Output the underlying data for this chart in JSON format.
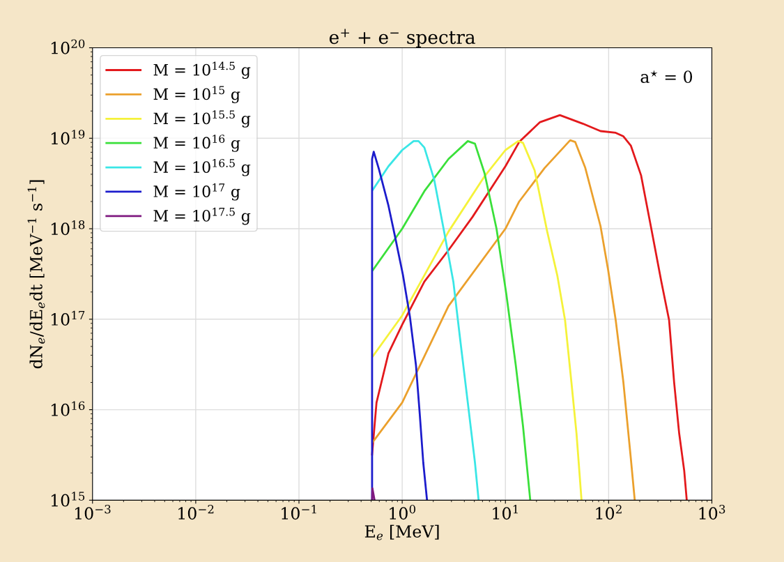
{
  "chart_data": {
    "type": "line",
    "title": "e$^{+}$ + e$^{−}$ spectra",
    "xlabel": "E$_{e}$ [MeV]",
    "ylabel": "dN$_{e}$/dE$_{e}$dt [MeV$^{−1}$ s$^{−1}$]",
    "annotations": [
      "a$^{⋆}$ = 0"
    ],
    "log": "xy",
    "grid": true,
    "legend": "top left",
    "line_style": "solid",
    "marker": "none",
    "xlim": [
      0.001,
      1000
    ],
    "ylim": [
      1000000000000000.0,
      1e+20
    ],
    "xticks": [
      {
        "value": 0.001,
        "label": "10$^{−3}$"
      },
      {
        "value": 0.01,
        "label": "10$^{−2}$"
      },
      {
        "value": 0.1,
        "label": "10$^{−1}$"
      },
      {
        "value": 1,
        "label": "10$^{0}$"
      },
      {
        "value": 10,
        "label": "10$^{1}$"
      },
      {
        "value": 100,
        "label": "10$^{2}$"
      },
      {
        "value": 1000,
        "label": "10$^{3}$"
      }
    ],
    "yticks": [
      {
        "value": 1000000000000000.0,
        "label": "10$^{15}$"
      },
      {
        "value": 1e+16,
        "label": "10$^{16}$"
      },
      {
        "value": 1e+17,
        "label": "10$^{17}$"
      },
      {
        "value": 1e+18,
        "label": "10$^{18}$"
      },
      {
        "value": 1e+19,
        "label": "10$^{19}$"
      },
      {
        "value": 1e+20,
        "label": "10$^{20}$"
      }
    ],
    "series": [
      {
        "name": "M = 10$^{14.5}$ g",
        "color": "#e3191c",
        "x": [
          0.511,
          0.564,
          0.736,
          1.0,
          1.64,
          2.81,
          4.8,
          10.0,
          13.6,
          21.5,
          33.7,
          56.1,
          83.4,
          117,
          139,
          164,
          206,
          259,
          324,
          385,
          431,
          482,
          540,
          571
        ],
        "values": [
          3200000000000000.0,
          1.2e+16,
          4.2e+16,
          8.7e+16,
          2.6e+17,
          5.8e+17,
          1.35e+18,
          4.9e+18,
          9.1e+18,
          1.5e+19,
          1.8e+19,
          1.45e+19,
          1.2e+19,
          1.15e+19,
          1.05e+19,
          8.3e+18,
          3.9e+18,
          1e+18,
          2.6e+17,
          9.8e+16,
          2e+16,
          5500000000000000.0,
          2100000000000000.0,
          1000000000000000.0
        ]
      },
      {
        "name": "M = 10$^{15}$ g",
        "color": "#eba02c",
        "x": [
          0.52,
          1.0,
          2.81,
          10.0,
          13.6,
          24.0,
          42.4,
          47.4,
          59.4,
          83.4,
          98.9,
          117,
          139,
          164,
          179
        ],
        "values": [
          4400000000000000.0,
          1.2e+16,
          1.4e+17,
          1e+18,
          2e+18,
          4.7e+18,
          9.5e+18,
          9.1e+18,
          4.7e+18,
          1.07e+18,
          3.5e+17,
          9.8e+16,
          2e+16,
          2900000000000000.0,
          1000000000000000.0
        ]
      },
      {
        "name": "M = 10$^{15.5}$ g",
        "color": "#f5f23a",
        "x": [
          0.52,
          1.0,
          2.81,
          6.28,
          10.0,
          13.3,
          14.8,
          19.2,
          25.4,
          31.9,
          37.8,
          43.6,
          48.8,
          54.6
        ],
        "values": [
          3.9e+16,
          1.1e+17,
          9.3e+17,
          3.8e+18,
          7.4e+18,
          9.3e+18,
          8.9e+18,
          4.4e+18,
          9.3e+17,
          3e+17,
          9.8e+16,
          2e+16,
          5500000000000000.0,
          1000000000000000.0
        ]
      },
      {
        "name": "M = 10$^{16}$ g",
        "color": "#3ae03a",
        "x": [
          0.52,
          1.0,
          1.64,
          2.81,
          4.32,
          5.07,
          6.28,
          8.2,
          10.2,
          12.6,
          14.8,
          17.4
        ],
        "values": [
          3.5e+17,
          1e+18,
          2.6e+18,
          5.9e+18,
          9.3e+18,
          8.7e+18,
          4.1e+18,
          1e+18,
          1.9e+17,
          3.1e+16,
          6600000000000000.0,
          1000000000000000.0
        ]
      },
      {
        "name": "M = 10$^{16.5}$ g",
        "color": "#3ae6e6",
        "x": [
          0.52,
          0.736,
          1.0,
          1.29,
          1.44,
          1.64,
          2.04,
          2.52,
          3.13,
          3.67,
          4.32,
          5.07,
          5.5
        ],
        "values": [
          2.7e+18,
          4.9e+18,
          7.4e+18,
          9.3e+18,
          9.3e+18,
          7.9e+18,
          3.5e+18,
          9.9e+17,
          2.6e+17,
          5.6e+16,
          1.2e+16,
          2600000000000000.0,
          1000000000000000.0
        ]
      },
      {
        "name": "M = 10$^{17}$ g",
        "color": "#1c1ccc",
        "x": [
          0.511,
          0.511,
          0.53,
          0.594,
          0.736,
          0.843,
          1.016,
          1.19,
          1.36,
          1.48,
          1.6,
          1.74
        ],
        "values": [
          1000000000000000.0,
          5.9e+18,
          7.1e+18,
          4.6e+18,
          1.8e+18,
          8.7e+17,
          3.1e+17,
          1.05e+17,
          3.1e+16,
          8900000000000000.0,
          2600000000000000.0,
          1000000000000000.0
        ]
      },
      {
        "name": "M = 10$^{17.5}$ g",
        "color": "#7f1a80",
        "x": [
          0.511,
          0.515,
          0.54
        ],
        "values": [
          1000000000000000.0,
          1350000000000000.0,
          1000000000000000.0
        ]
      }
    ]
  }
}
